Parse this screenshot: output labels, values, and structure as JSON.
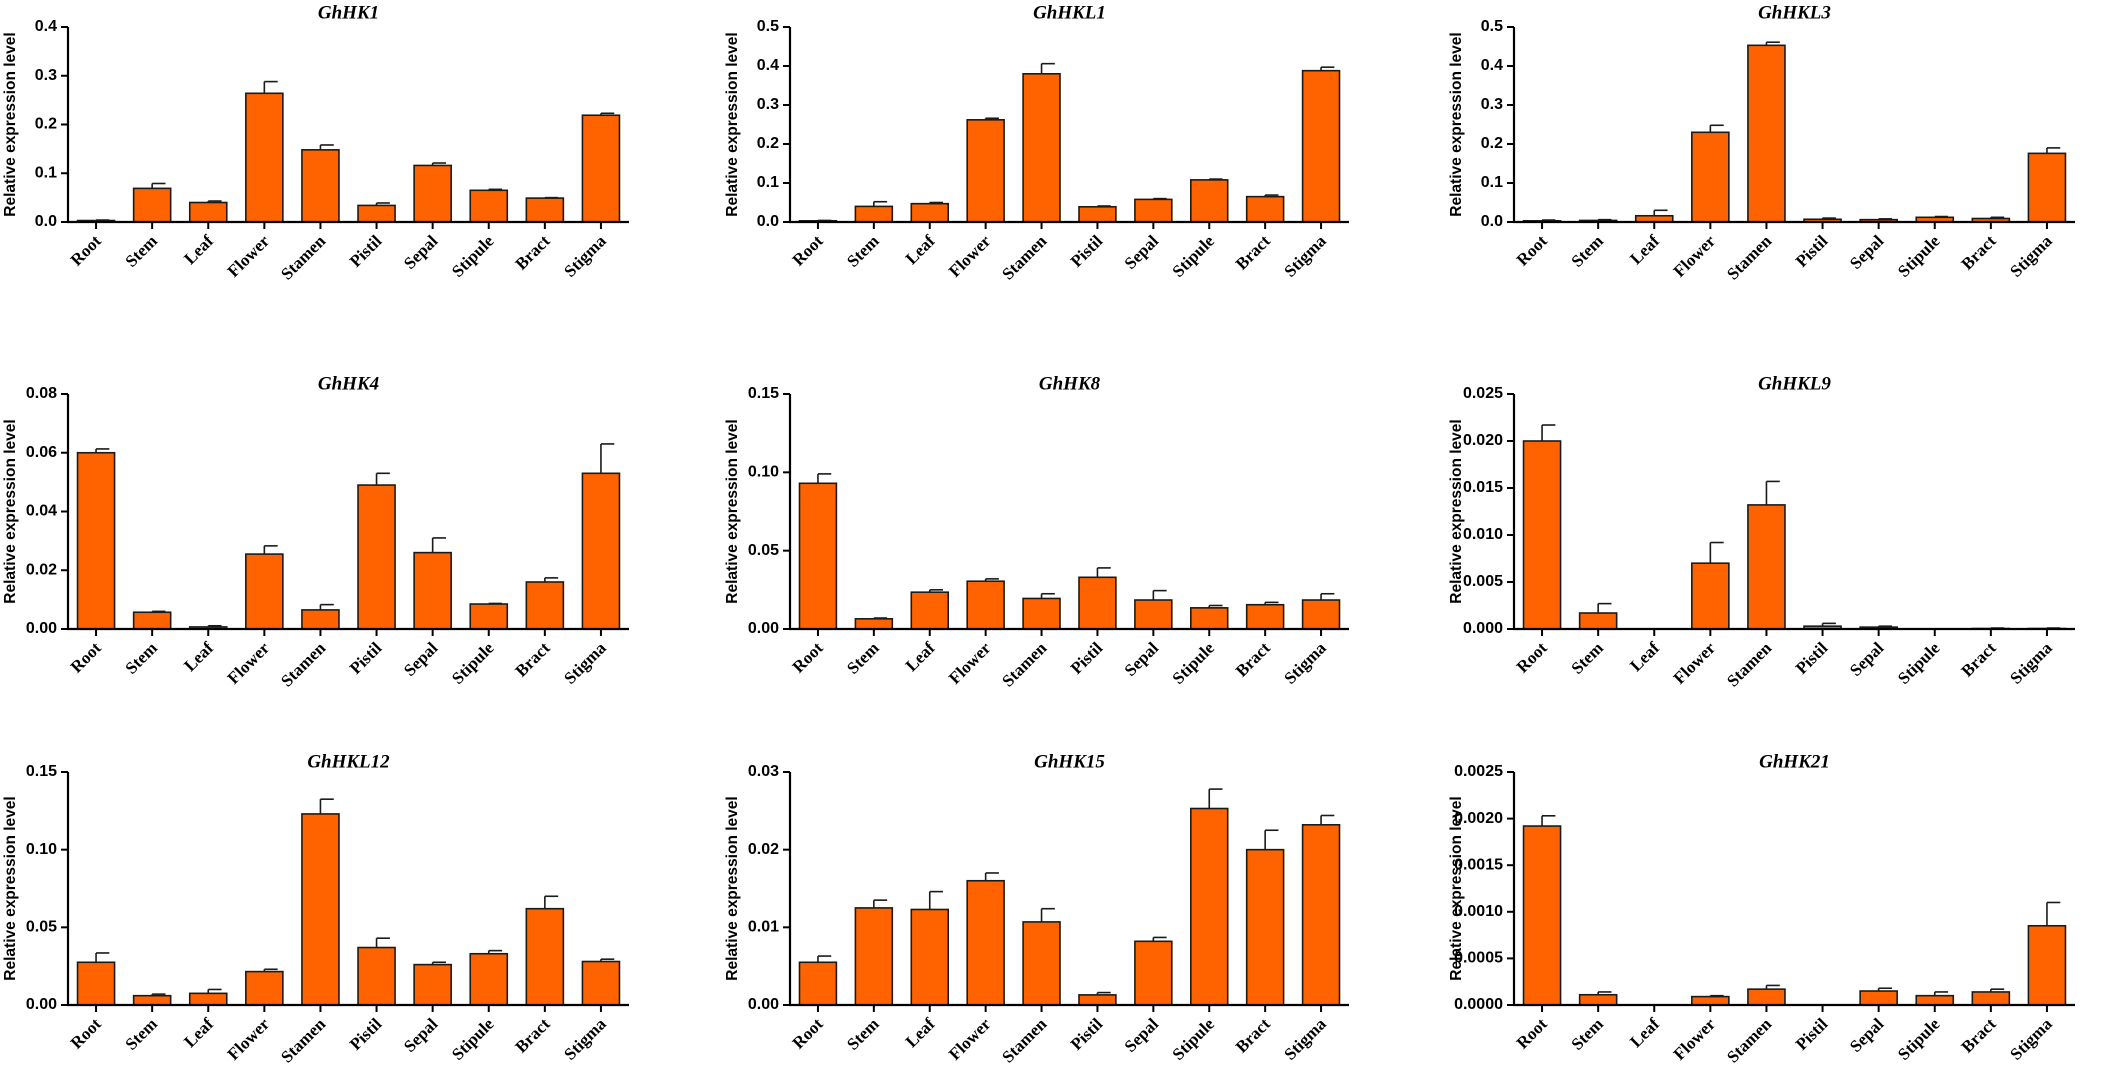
{
  "colors": {
    "bar_fill": "#ff6300",
    "bar_stroke": "#1a1a1a",
    "axis": "#000000"
  },
  "chart_data": [
    {
      "type": "bar",
      "title": "GhHK1",
      "ylabel": "Relative expression  level",
      "categories": [
        "Root",
        "Stem",
        "Leaf",
        "Flower",
        "Stamen",
        "Pistil",
        "Sepal",
        "Stipule",
        "Bract",
        "Stigma"
      ],
      "values": [
        0.003,
        0.069,
        0.04,
        0.264,
        0.148,
        0.034,
        0.116,
        0.065,
        0.049,
        0.219
      ],
      "errors": [
        0.001,
        0.01,
        0.003,
        0.024,
        0.01,
        0.005,
        0.005,
        0.002,
        0.001,
        0.004
      ],
      "ylim": [
        0,
        0.4
      ],
      "yticks": [
        "0.0",
        "0.1",
        "0.2",
        "0.3",
        "0.4"
      ]
    },
    {
      "type": "bar",
      "title": "GhHKL1",
      "ylabel": "Relative expression  level",
      "categories": [
        "Root",
        "Stem",
        "Leaf",
        "Flower",
        "Stamen",
        "Pistil",
        "Sepal",
        "Stipule",
        "Bract",
        "Stigma"
      ],
      "values": [
        0.003,
        0.04,
        0.047,
        0.262,
        0.38,
        0.039,
        0.058,
        0.108,
        0.065,
        0.388
      ],
      "errors": [
        0.001,
        0.012,
        0.003,
        0.004,
        0.026,
        0.002,
        0.002,
        0.002,
        0.004,
        0.009
      ],
      "ylim": [
        0,
        0.5
      ],
      "yticks": [
        "0.0",
        "0.1",
        "0.2",
        "0.3",
        "0.4",
        "0.5"
      ]
    },
    {
      "type": "bar",
      "title": "GhHKL3",
      "ylabel": "Relative expression  level",
      "categories": [
        "Root",
        "Stem",
        "Leaf",
        "Flower",
        "Stamen",
        "Pistil",
        "Sepal",
        "Stipule",
        "Bract",
        "Stigma"
      ],
      "values": [
        0.003,
        0.004,
        0.016,
        0.23,
        0.453,
        0.007,
        0.006,
        0.012,
        0.009,
        0.176
      ],
      "errors": [
        0.002,
        0.002,
        0.014,
        0.018,
        0.008,
        0.003,
        0.002,
        0.002,
        0.003,
        0.014
      ],
      "ylim": [
        0,
        0.5
      ],
      "yticks": [
        "0.0",
        "0.1",
        "0.2",
        "0.3",
        "0.4",
        "0.5"
      ]
    },
    {
      "type": "bar",
      "title": "GhHK4",
      "ylabel": "Relative expression  level",
      "categories": [
        "Root",
        "Stem",
        "Leaf",
        "Flower",
        "Stamen",
        "Pistil",
        "Sepal",
        "Stipule",
        "Bract",
        "Stigma"
      ],
      "values": [
        0.06,
        0.0057,
        0.0007,
        0.0255,
        0.0065,
        0.049,
        0.026,
        0.0085,
        0.016,
        0.053
      ],
      "errors": [
        0.0013,
        0.0003,
        0.0004,
        0.0028,
        0.0018,
        0.004,
        0.005,
        0.0002,
        0.0014,
        0.01
      ],
      "ylim": [
        0,
        0.08
      ],
      "yticks": [
        "0.00",
        "0.02",
        "0.04",
        "0.06",
        "0.08"
      ]
    },
    {
      "type": "bar",
      "title": "GhHK8",
      "ylabel": "Relative expression  level",
      "categories": [
        "Root",
        "Stem",
        "Leaf",
        "Flower",
        "Stamen",
        "Pistil",
        "Sepal",
        "Stipule",
        "Bract",
        "Stigma"
      ],
      "values": [
        0.093,
        0.0065,
        0.0235,
        0.0305,
        0.0195,
        0.033,
        0.0185,
        0.0135,
        0.0155,
        0.0185
      ],
      "errors": [
        0.006,
        0.0005,
        0.0015,
        0.0015,
        0.003,
        0.006,
        0.006,
        0.0015,
        0.0015,
        0.004
      ],
      "ylim": [
        0,
        0.15
      ],
      "yticks": [
        "0.00",
        "0.05",
        "0.10",
        "0.15"
      ]
    },
    {
      "type": "bar",
      "title": "GhHKL9",
      "ylabel": "Relative expression  level",
      "categories": [
        "Root",
        "Stem",
        "Leaf",
        "Flower",
        "Stamen",
        "Pistil",
        "Sepal",
        "Stipule",
        "Bract",
        "Stigma"
      ],
      "values": [
        0.02,
        0.0017,
        0,
        0.007,
        0.0132,
        0.0003,
        0.0002,
        0,
        5e-05,
        5e-05
      ],
      "errors": [
        0.0017,
        0.001,
        0,
        0.0022,
        0.0025,
        0.0003,
        0.0001,
        0,
        5e-05,
        5e-05
      ],
      "ylim": [
        0,
        0.025
      ],
      "yticks": [
        "0.000",
        "0.005",
        "0.010",
        "0.015",
        "0.020",
        "0.025"
      ]
    },
    {
      "type": "bar",
      "title": "GhHKL12",
      "ylabel": "Relative expression  level",
      "categories": [
        "Root",
        "Stem",
        "Leaf",
        "Flower",
        "Stamen",
        "Pistil",
        "Sepal",
        "Stipule",
        "Bract",
        "Stigma"
      ],
      "values": [
        0.0275,
        0.006,
        0.0075,
        0.0215,
        0.123,
        0.037,
        0.026,
        0.033,
        0.062,
        0.028
      ],
      "errors": [
        0.006,
        0.001,
        0.0025,
        0.0015,
        0.0095,
        0.006,
        0.0015,
        0.002,
        0.008,
        0.0015
      ],
      "ylim": [
        0,
        0.15
      ],
      "yticks": [
        "0.00",
        "0.05",
        "0.10",
        "0.15"
      ]
    },
    {
      "type": "bar",
      "title": "GhHK15",
      "ylabel": "Relative expression  level",
      "categories": [
        "Root",
        "Stem",
        "Leaf",
        "Flower",
        "Stamen",
        "Pistil",
        "Sepal",
        "Stipule",
        "Bract",
        "Stigma"
      ],
      "values": [
        0.0055,
        0.0125,
        0.0123,
        0.016,
        0.0107,
        0.0013,
        0.0082,
        0.0253,
        0.02,
        0.0232
      ],
      "errors": [
        0.0008,
        0.001,
        0.0023,
        0.001,
        0.0017,
        0.0003,
        0.0005,
        0.0025,
        0.0025,
        0.0012
      ],
      "ylim": [
        0,
        0.03
      ],
      "yticks": [
        "0.00",
        "0.01",
        "0.02",
        "0.03"
      ]
    },
    {
      "type": "bar",
      "title": "GhHK21",
      "ylabel": "Relative expression  level",
      "categories": [
        "Root",
        "Stem",
        "Leaf",
        "Flower",
        "Stamen",
        "Pistil",
        "Sepal",
        "Stipule",
        "Bract",
        "Stigma"
      ],
      "values": [
        0.00192,
        0.00011,
        0,
        9e-05,
        0.00017,
        0,
        0.00015,
        0.0001,
        0.00014,
        0.00085
      ],
      "errors": [
        0.00011,
        3e-05,
        0,
        1e-05,
        4e-05,
        0,
        3e-05,
        4e-05,
        3e-05,
        0.00025
      ],
      "ylim": [
        0,
        0.0025
      ],
      "yticks": [
        "0.0000",
        "0.0005",
        "0.0010",
        "0.0015",
        "0.0020",
        "0.0025"
      ]
    }
  ]
}
